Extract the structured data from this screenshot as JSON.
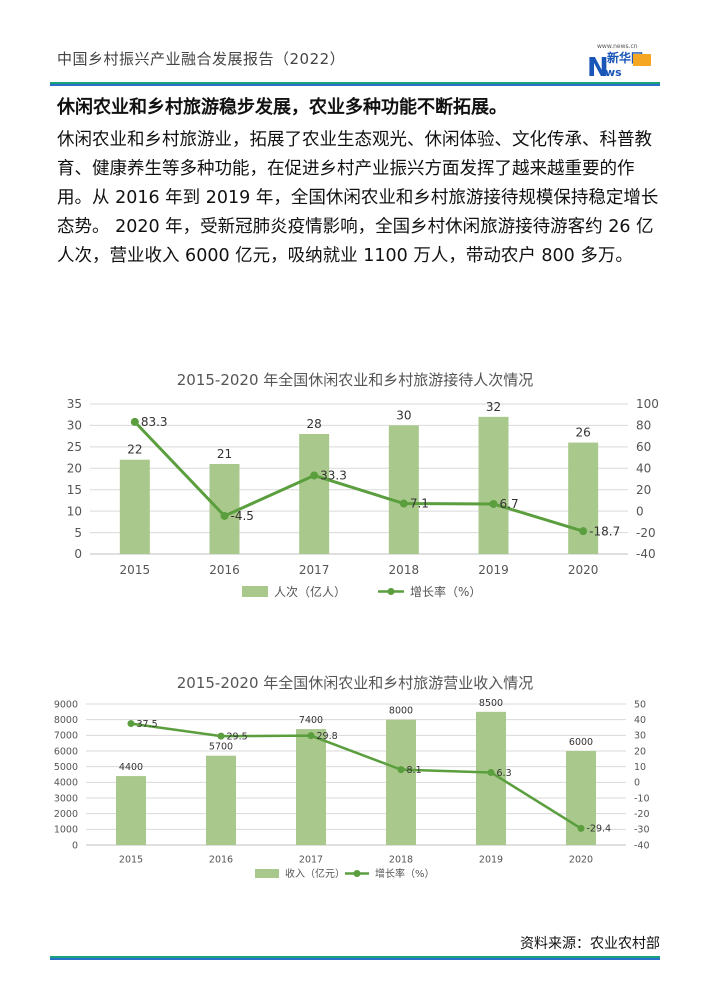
{
  "header": {
    "title": "中国乡村振兴产业融合发展报告（2022）"
  },
  "logo": {
    "site": "www.news.cn",
    "name": "新华网",
    "letters": "NEWS"
  },
  "article": {
    "headline": "休闲农业和乡村旅游稳步发展，农业多种功能不断拓展。",
    "body": "休闲农业和乡村旅游业，拓展了农业生态观光、休闲体验、文化传承、科普教育、健康养生等多种功能，在促进乡村产业振兴方面发挥了越来越重要的作用。从 2016 年到 2019 年，全国休闲农业和乡村旅游接待规模保持稳定增长态势。 2020 年，受新冠肺炎疫情影响，全国乡村休闲旅游接待游客约 26 亿人次，营业收入 6000 亿元，吸纳就业 1100 万人，带动农户 800 多万。"
  },
  "colors": {
    "bar": "#a9c98c",
    "line": "#5a9e3e",
    "axis": "#555555",
    "grid": "#d9d9d9",
    "title": "#555555"
  },
  "chart_data": [
    {
      "type": "bar",
      "title": "2015-2020 年全国休闲农业和乡村旅游接待人次情况",
      "categories": [
        "2015",
        "2016",
        "2017",
        "2018",
        "2019",
        "2020"
      ],
      "series": [
        {
          "name": "人次（亿人）",
          "type": "bar",
          "axis": "left",
          "values": [
            22,
            21,
            28,
            30,
            32,
            26
          ]
        },
        {
          "name": "增长率（%）",
          "type": "line",
          "axis": "right",
          "values": [
            83.3,
            -4.5,
            33.3,
            7.1,
            6.7,
            -18.7
          ]
        }
      ],
      "ylim_left": [
        0,
        35
      ],
      "yticks_left": [
        0,
        5,
        10,
        15,
        20,
        25,
        30,
        35
      ],
      "ylim_right": [
        -40,
        100
      ],
      "yticks_right": [
        -40,
        -20,
        0,
        20,
        40,
        60,
        80,
        100
      ],
      "grid": true,
      "legend": "bottom"
    },
    {
      "type": "bar",
      "title": "2015-2020 年全国休闲农业和乡村旅游营业收入情况",
      "categories": [
        "2015",
        "2016",
        "2017",
        "2018",
        "2019",
        "2020"
      ],
      "series": [
        {
          "name": "收入（亿元）",
          "type": "bar",
          "axis": "left",
          "values": [
            4400,
            5700,
            7400,
            8000,
            8500,
            6000
          ]
        },
        {
          "name": "增长率（%）",
          "type": "line",
          "axis": "right",
          "values": [
            37.5,
            29.5,
            29.8,
            8.1,
            6.3,
            -29.4
          ]
        }
      ],
      "ylim_left": [
        0,
        9000
      ],
      "yticks_left": [
        0,
        1000,
        2000,
        3000,
        4000,
        5000,
        6000,
        7000,
        8000,
        9000
      ],
      "ylim_right": [
        -40,
        50
      ],
      "yticks_right": [
        -40,
        -30,
        -20,
        -10,
        0,
        10,
        20,
        30,
        40,
        50
      ],
      "grid": true,
      "legend": "bottom"
    }
  ],
  "source": "资料来源：农业农村部"
}
